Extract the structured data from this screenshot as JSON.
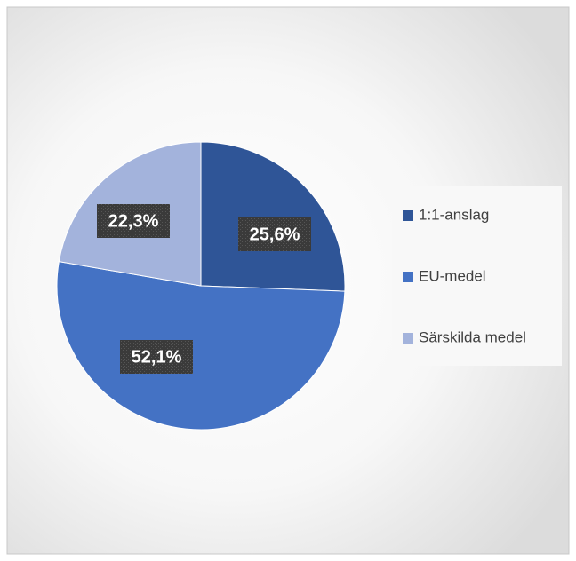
{
  "chart_data": {
    "type": "pie",
    "categories": [
      "1:1-anslag",
      "EU-medel",
      "Särskilda medel"
    ],
    "values": [
      25.6,
      52.1,
      22.3
    ],
    "value_labels": [
      "25,6%",
      "52,1%",
      "22,3%"
    ],
    "colors": [
      "#2f5597",
      "#4472c4",
      "#a3b3dc"
    ],
    "legend": "right"
  }
}
